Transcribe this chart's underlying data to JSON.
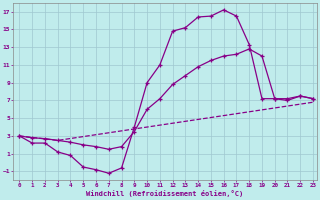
{
  "background_color": "#c0ecec",
  "grid_color": "#a0c8d0",
  "line_color": "#880088",
  "xlabel": "Windchill (Refroidissement éolien,°C)",
  "xlim": [
    0,
    23
  ],
  "ylim": [
    -2,
    18
  ],
  "xticks": [
    0,
    1,
    2,
    3,
    4,
    5,
    6,
    7,
    8,
    9,
    10,
    11,
    12,
    13,
    14,
    15,
    16,
    17,
    18,
    19,
    20,
    21,
    22,
    23
  ],
  "yticks": [
    -1,
    1,
    3,
    5,
    7,
    9,
    11,
    13,
    15,
    17
  ],
  "line1_x": [
    0,
    1,
    2,
    3,
    4,
    5,
    6,
    7,
    8,
    9,
    10,
    11,
    12,
    13,
    14,
    15,
    16,
    17,
    18,
    19,
    20,
    21,
    22,
    23
  ],
  "line1_y": [
    3.0,
    2.2,
    2.2,
    1.2,
    0.8,
    -0.5,
    -0.8,
    -1.2,
    -0.6,
    4.0,
    9.0,
    11.0,
    14.8,
    15.2,
    16.4,
    16.5,
    17.2,
    16.5,
    13.3,
    7.2,
    7.2,
    7.2,
    7.5,
    7.2
  ],
  "line2_x": [
    0,
    1,
    2,
    3,
    4,
    5,
    6,
    7,
    8,
    9,
    10,
    11,
    12,
    13,
    14,
    15,
    16,
    17,
    18,
    19,
    20,
    21,
    22,
    23
  ],
  "line2_y": [
    3.0,
    2.8,
    2.7,
    2.5,
    2.3,
    2.0,
    1.8,
    1.5,
    1.8,
    3.5,
    6.0,
    7.2,
    8.8,
    9.8,
    10.8,
    11.5,
    12.0,
    12.2,
    12.8,
    12.0,
    7.2,
    7.0,
    7.5,
    7.2
  ],
  "line3_x": [
    0,
    3,
    23
  ],
  "line3_y": [
    3.0,
    2.5,
    6.8
  ]
}
